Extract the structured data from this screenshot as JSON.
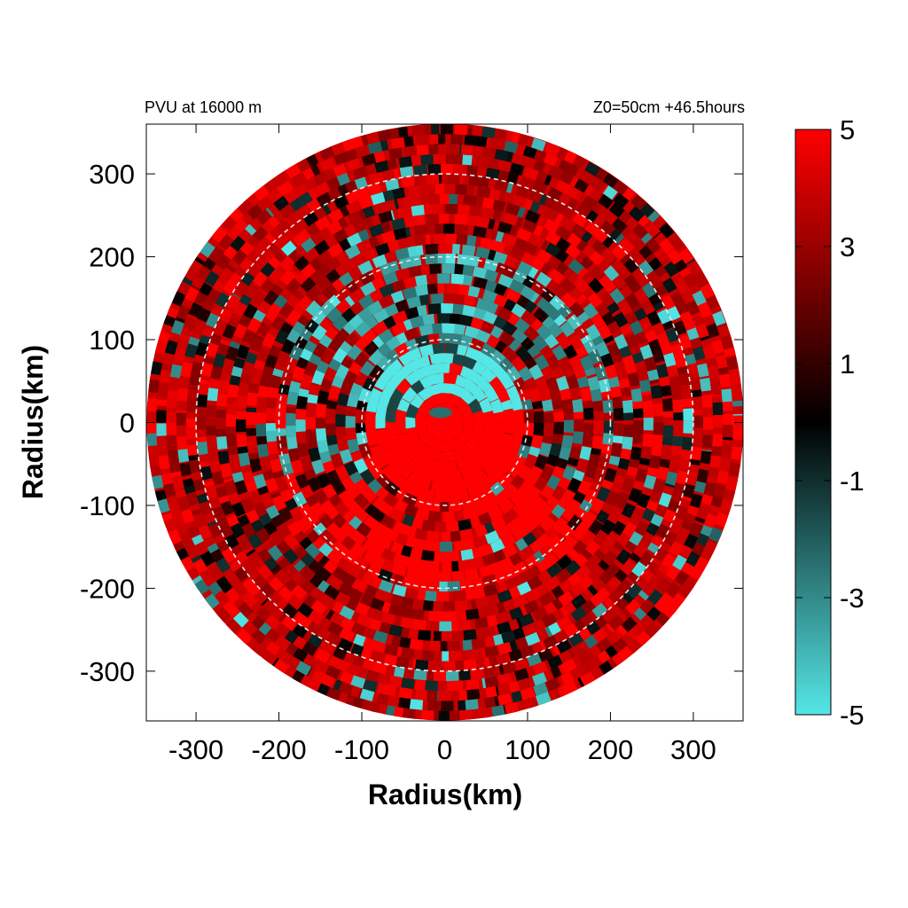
{
  "chart_data": {
    "type": "heatmap",
    "title_left": "PVU at 16000 m",
    "title_right": "Z0=50cm  +46.5hours",
    "xlabel": "Radius(km)",
    "ylabel": "Radius(km)",
    "xlim": [
      -360,
      360
    ],
    "ylim": [
      -360,
      360
    ],
    "xticks": [
      "-300",
      "-200",
      "-100",
      "0",
      "100",
      "200",
      "300"
    ],
    "xtick_values": [
      -300,
      -200,
      -100,
      0,
      100,
      200,
      300
    ],
    "yticks": [
      "300",
      "200",
      "100",
      "0",
      "-100",
      "-200",
      "-300"
    ],
    "ytick_values": [
      300,
      200,
      100,
      0,
      -100,
      -200,
      -300
    ],
    "domain_radius_km": 360,
    "reference_circles_km": [
      100,
      200,
      300
    ],
    "colorbar": {
      "min": -5,
      "max": 5,
      "tick_labels": [
        "5",
        "3",
        "1",
        "-1",
        "-3",
        "-5"
      ],
      "tick_values": [
        5,
        3,
        1,
        -1,
        -3,
        -5
      ],
      "colors": {
        "low": "#55e6e6",
        "mid": "#000000",
        "high": "#ff0000"
      }
    }
  }
}
